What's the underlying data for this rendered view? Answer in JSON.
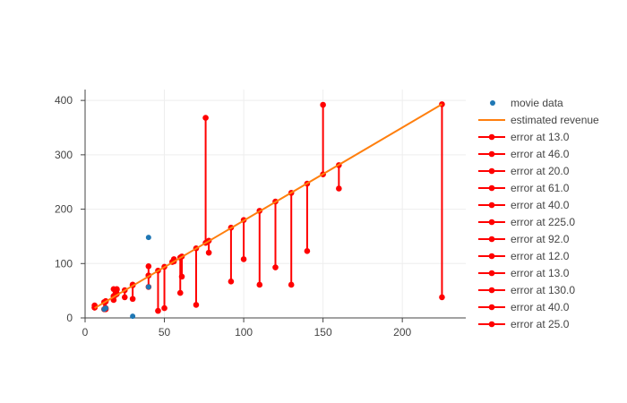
{
  "chart_data": {
    "type": "scatter",
    "title": "",
    "xlabel": "",
    "ylabel": "",
    "xlim": [
      0,
      240
    ],
    "ylim": [
      0,
      420
    ],
    "x_ticks": [
      0,
      50,
      100,
      150,
      200
    ],
    "y_ticks": [
      0,
      100,
      200,
      300,
      400
    ],
    "grid": true,
    "legend_position": "right",
    "colors": {
      "data": "#1f77b4",
      "fit": "#ff7f0e",
      "error": "#ff0000"
    },
    "legend_order": [
      "movie data",
      "estimated revenue",
      "error at 13.0",
      "error at 46.0",
      "error at 20.0",
      "error at 61.0",
      "error at 40.0",
      "error at 225.0",
      "error at 92.0",
      "error at 12.0",
      "error at 13.0",
      "error at 130.0",
      "error at 40.0",
      "error at 25.0"
    ],
    "data_points": {
      "name": "movie data",
      "x": [
        30,
        40,
        40,
        12,
        13
      ],
      "y": [
        3,
        57,
        148,
        16,
        18
      ]
    },
    "fit_line": {
      "name": "estimated revenue",
      "x": [
        6,
        225
      ],
      "y": [
        18,
        393
      ]
    },
    "error_segments": [
      {
        "name": "error at 13.0",
        "x": 13,
        "y_actual": 16,
        "y_pred": 30
      },
      {
        "name": "error at 46.0",
        "x": 46,
        "y_actual": 13,
        "y_pred": 87
      },
      {
        "name": "error at 20.0",
        "x": 20,
        "y_actual": 45,
        "y_pred": 52
      },
      {
        "name": "error at 61.0",
        "x": 61,
        "y_actual": 76,
        "y_pred": 113
      },
      {
        "name": "error at 40.0",
        "x": 40,
        "y_actual": 95,
        "y_pred": 78
      },
      {
        "name": "error at 225.0",
        "x": 225,
        "y_actual": 38,
        "y_pred": 393
      },
      {
        "name": "error at 92.0",
        "x": 92,
        "y_actual": 67,
        "y_pred": 166
      },
      {
        "name": "error at 12.0",
        "x": 12,
        "y_actual": 16,
        "y_pred": 29
      },
      {
        "name": "error at 13.0",
        "x": 13,
        "y_actual": 18,
        "y_pred": 31
      },
      {
        "name": "error at 130.0",
        "x": 130,
        "y_actual": 61,
        "y_pred": 230
      },
      {
        "name": "error at 40.0",
        "x": 40,
        "y_actual": 57,
        "y_pred": 78
      },
      {
        "name": "error at 25.0",
        "x": 25,
        "y_actual": 38,
        "y_pred": 51
      },
      {
        "name": "",
        "x": 6,
        "y_actual": 23,
        "y_pred": 19
      },
      {
        "name": "",
        "x": 6,
        "y_actual": 20,
        "y_pred": 19
      },
      {
        "name": "",
        "x": 18,
        "y_actual": 53,
        "y_pred": 40
      },
      {
        "name": "",
        "x": 18,
        "y_actual": 33,
        "y_pred": 40
      },
      {
        "name": "",
        "x": 19,
        "y_actual": 43,
        "y_pred": 42
      },
      {
        "name": "",
        "x": 20,
        "y_actual": 53,
        "y_pred": 44
      },
      {
        "name": "",
        "x": 30,
        "y_actual": 35,
        "y_pred": 61
      },
      {
        "name": "",
        "x": 30,
        "y_actual": 60,
        "y_pred": 61
      },
      {
        "name": "",
        "x": 50,
        "y_actual": 18,
        "y_pred": 94
      },
      {
        "name": "",
        "x": 55,
        "y_actual": 103,
        "y_pred": 103
      },
      {
        "name": "",
        "x": 56,
        "y_actual": 108,
        "y_pred": 104
      },
      {
        "name": "",
        "x": 60,
        "y_actual": 46,
        "y_pred": 111
      },
      {
        "name": "",
        "x": 70,
        "y_actual": 24,
        "y_pred": 128
      },
      {
        "name": "",
        "x": 76,
        "y_actual": 368,
        "y_pred": 138
      },
      {
        "name": "",
        "x": 78,
        "y_actual": 120,
        "y_pred": 142
      },
      {
        "name": "",
        "x": 100,
        "y_actual": 108,
        "y_pred": 180
      },
      {
        "name": "",
        "x": 110,
        "y_actual": 61,
        "y_pred": 197
      },
      {
        "name": "",
        "x": 120,
        "y_actual": 93,
        "y_pred": 214
      },
      {
        "name": "",
        "x": 140,
        "y_actual": 123,
        "y_pred": 247
      },
      {
        "name": "",
        "x": 150,
        "y_actual": 392,
        "y_pred": 264
      },
      {
        "name": "",
        "x": 160,
        "y_actual": 238,
        "y_pred": 281
      }
    ]
  }
}
